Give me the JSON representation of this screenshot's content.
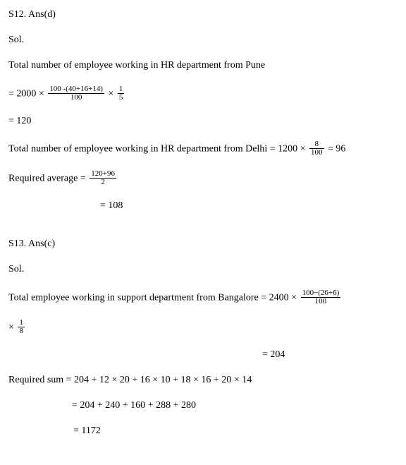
{
  "s12": {
    "header": "S12. Ans(d)",
    "sol": "Sol.",
    "line1": "Total number of employee working in HR department from Pune",
    "eq_prefix": "= 2000 × ",
    "frac1_num": "100 -(40+16+14)",
    "frac1_den": "100",
    "mul": " × ",
    "frac2_num": "1",
    "frac2_den": "5",
    "eq_res1": "= 120",
    "line2_pre": "Total number of employee working in HR department from Delhi = 1200 × ",
    "frac3_num": "8",
    "frac3_den": "100",
    "line2_post": " = 96",
    "req_pre": "Required average = ",
    "frac4_num": "120+96",
    "frac4_den": "2",
    "req_res": "= 108"
  },
  "s13": {
    "header": "S13.  Ans(c)",
    "sol": "Sol.",
    "line1_pre": "Total employee working in support department from Bangalore = 2400 × ",
    "frac1_num": "100−(26+6)",
    "frac1_den": "100",
    "mul_prefix": "× ",
    "frac2_num": "1",
    "frac2_den": "8",
    "res1": "= 204",
    "req_line1": "Required sum = 204 + 12 × 20 + 16 × 10 + 18 × 16 + 20 × 14",
    "req_line2": "= 204 + 240 + 160 + 288 + 280",
    "req_line3": "= 1172"
  }
}
